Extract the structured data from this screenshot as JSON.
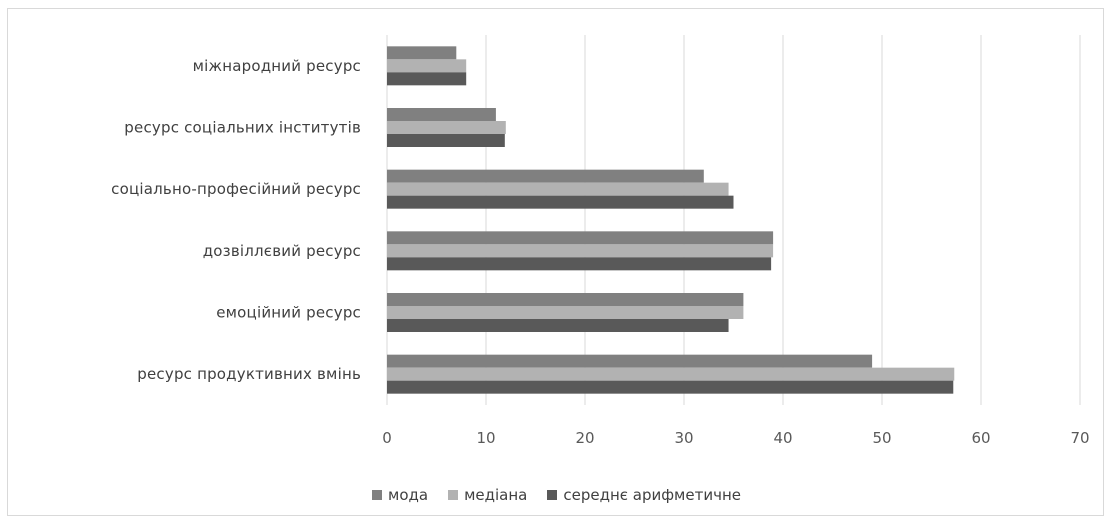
{
  "chart_data": {
    "type": "bar",
    "orientation": "horizontal",
    "categories": [
      "міжнародний ресурс",
      "ресурс соціальних інститутів",
      "соціально-професійний ресурс",
      "дозвіллєвий ресурс",
      "емоційний ресурс",
      "ресурс продуктивних вмінь"
    ],
    "series": [
      {
        "name": "мода",
        "color": "#808080",
        "values": [
          7,
          11,
          32,
          39,
          36,
          49
        ]
      },
      {
        "name": "медіана",
        "color": "#b2b2b2",
        "values": [
          8,
          12,
          34.5,
          39,
          36,
          57.3
        ]
      },
      {
        "name": "середнє арифметичне",
        "color": "#595959",
        "values": [
          8,
          11.9,
          35,
          38.8,
          34.5,
          57.2
        ]
      }
    ],
    "x_ticks": [
      "0",
      "10",
      "20",
      "30",
      "40",
      "50",
      "60",
      "70"
    ],
    "xlim": [
      0,
      70
    ],
    "grid": "vertical",
    "legend_position": "bottom",
    "title": "",
    "xlabel": "",
    "ylabel": ""
  }
}
